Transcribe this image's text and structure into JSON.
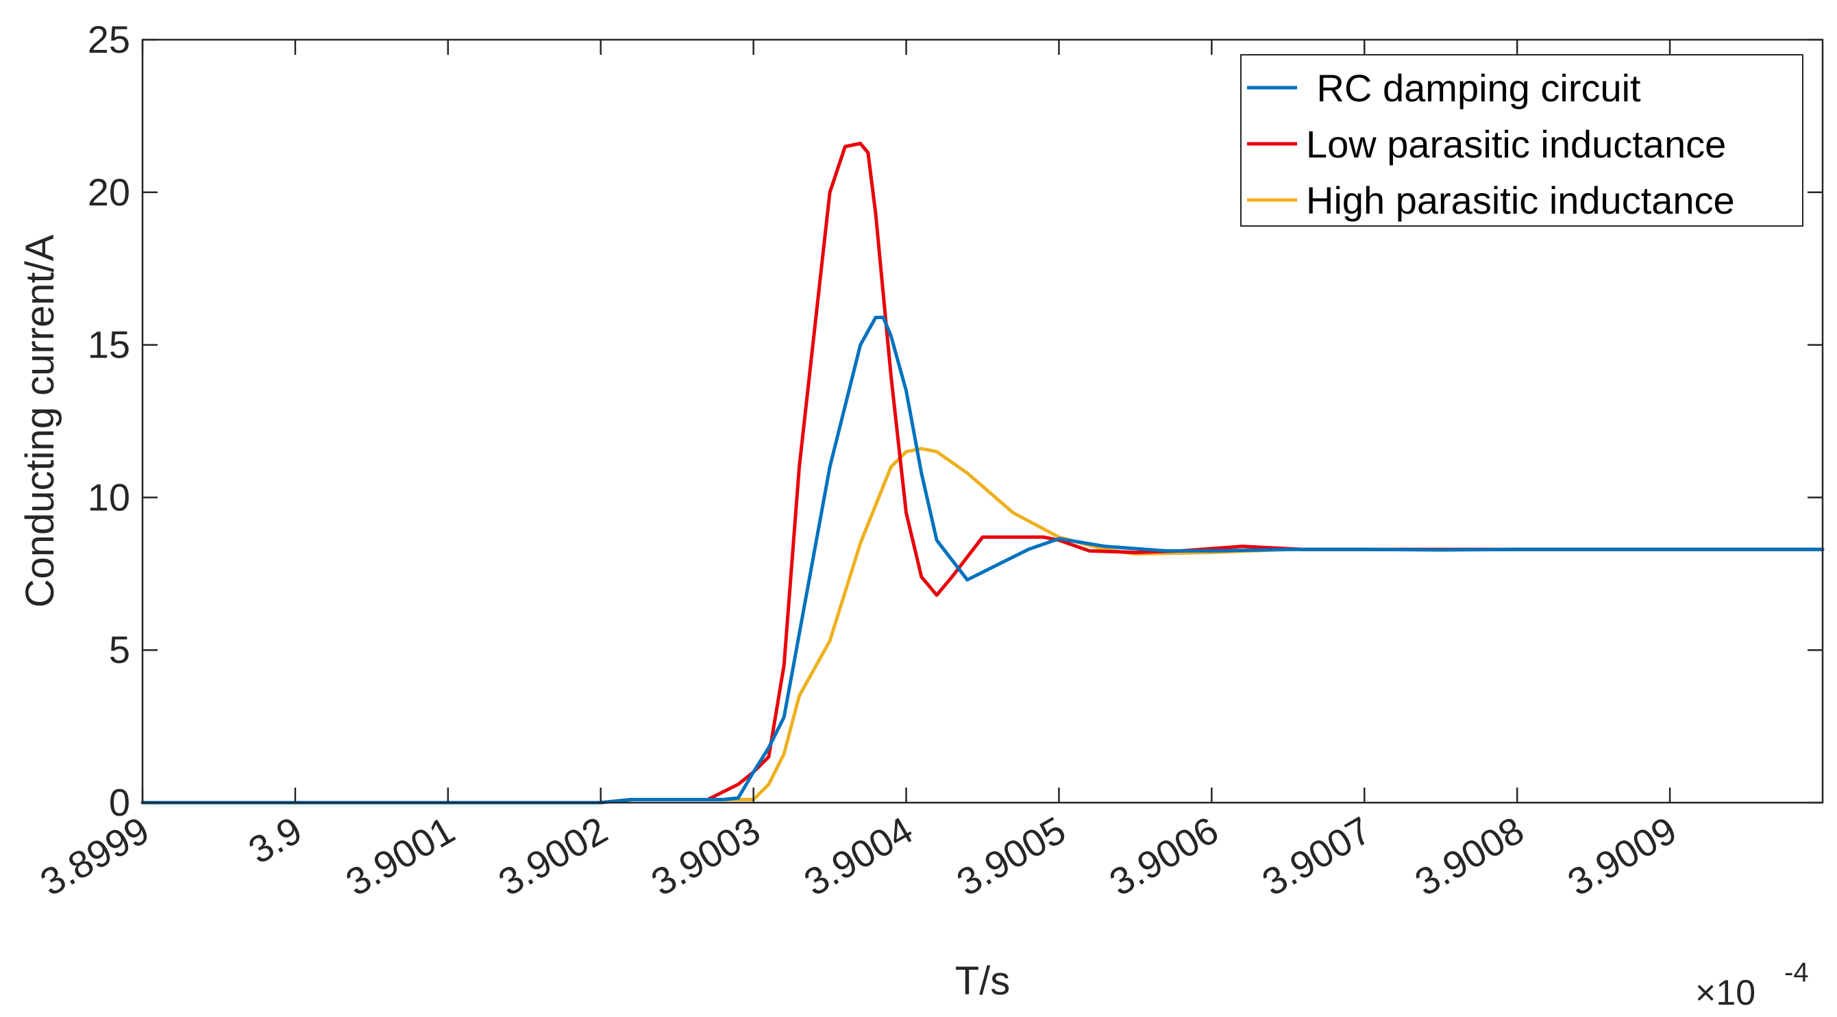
{
  "chart_data": {
    "type": "line",
    "xlabel": "T/s",
    "ylabel": "Conducting current/A",
    "x_multiplier_label": {
      "prefix": "×10",
      "exponent": "-4"
    },
    "xlim": [
      3.8999,
      3.901
    ],
    "ylim": [
      0,
      25
    ],
    "xticks": [
      3.8999,
      3.9,
      3.9001,
      3.9002,
      3.9003,
      3.9004,
      3.9005,
      3.9006,
      3.9007,
      3.9008,
      3.9009
    ],
    "xtick_labels": [
      "3.8999",
      "3.9",
      "3.9001",
      "3.9002",
      "3.9003",
      "3.9004",
      "3.9005",
      "3.9006",
      "3.9007",
      "3.9008",
      "3.9009"
    ],
    "yticks": [
      0,
      5,
      10,
      15,
      20,
      25
    ],
    "ytick_labels": [
      "0",
      "5",
      "10",
      "15",
      "20",
      "25"
    ],
    "grid": false,
    "legend_position": "top-right",
    "series": [
      {
        "name": " RC damping circuit",
        "color": "#0072BD",
        "x": [
          3.8999,
          3.9002,
          3.90022,
          3.90028,
          3.90029,
          3.9003,
          3.90031,
          3.90032,
          3.90035,
          3.90037,
          3.90038,
          3.900385,
          3.90039,
          3.9004,
          3.90041,
          3.90042,
          3.90044,
          3.90046,
          3.90048,
          3.9005,
          3.90053,
          3.90057,
          3.9006,
          3.90065,
          3.9007,
          3.90075,
          3.9008,
          3.901
        ],
        "y": [
          0,
          0,
          0.1,
          0.1,
          0.15,
          1.0,
          1.8,
          2.8,
          11.0,
          15.0,
          15.9,
          15.9,
          15.3,
          13.5,
          10.8,
          8.6,
          7.3,
          7.8,
          8.3,
          8.65,
          8.4,
          8.25,
          8.25,
          8.3,
          8.3,
          8.28,
          8.3,
          8.3
        ]
      },
      {
        "name": "Low parasitic inductance",
        "color": "#E8000B",
        "x": [
          3.8999,
          3.9002,
          3.90022,
          3.90027,
          3.90029,
          3.9003,
          3.90031,
          3.90032,
          3.90033,
          3.90035,
          3.90036,
          3.90037,
          3.900375,
          3.90038,
          3.90039,
          3.9004,
          3.90041,
          3.90042,
          3.90043,
          3.90045,
          3.90047,
          3.90049,
          3.9005,
          3.90052,
          3.90055,
          3.90058,
          3.90062,
          3.90066,
          3.9007,
          3.901
        ],
        "y": [
          0,
          0,
          0.1,
          0.1,
          0.6,
          1.0,
          1.5,
          4.5,
          11.0,
          20.0,
          21.5,
          21.6,
          21.3,
          19.3,
          14.0,
          9.5,
          7.4,
          6.8,
          7.4,
          8.7,
          8.7,
          8.7,
          8.6,
          8.25,
          8.2,
          8.25,
          8.4,
          8.3,
          8.3,
          8.3
        ]
      },
      {
        "name": "High parasitic inductance",
        "color": "#EDB120",
        "x": [
          3.8999,
          3.9002,
          3.90022,
          3.9003,
          3.90031,
          3.90032,
          3.90033,
          3.90035,
          3.90037,
          3.90039,
          3.9004,
          3.90041,
          3.90042,
          3.90044,
          3.90047,
          3.9005,
          3.90053,
          3.90055,
          3.9006,
          3.90065,
          3.9007,
          3.901
        ],
        "y": [
          0,
          0,
          0.1,
          0.1,
          0.6,
          1.6,
          3.5,
          5.3,
          8.5,
          11.0,
          11.5,
          11.6,
          11.5,
          10.8,
          9.5,
          8.7,
          8.3,
          8.15,
          8.2,
          8.3,
          8.3,
          8.3
        ]
      }
    ]
  }
}
